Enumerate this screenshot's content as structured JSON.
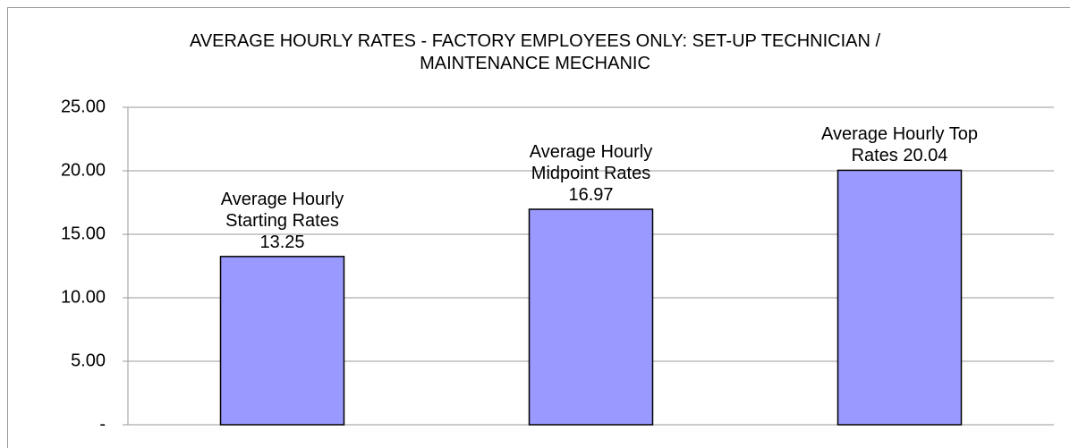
{
  "chart_data": {
    "type": "bar",
    "title": "AVERAGE HOURLY RATES - FACTORY EMPLOYEES ONLY: SET-UP TECHNICIAN / MAINTENANCE MECHANIC",
    "categories": [
      "Average Hourly Starting Rates",
      "Average Hourly Midpoint Rates",
      "Average Hourly Top Rates"
    ],
    "values": [
      13.25,
      16.97,
      20.04
    ],
    "color": "#9999ff",
    "ylim": [
      0,
      25
    ],
    "yticks": [
      {
        "value": 0,
        "label": "-"
      },
      {
        "value": 5,
        "label": "5.00"
      },
      {
        "value": 10,
        "label": "10.00"
      },
      {
        "value": 15,
        "label": "15.00"
      },
      {
        "value": 20,
        "label": "20.00"
      },
      {
        "value": 25,
        "label": "25.00"
      }
    ],
    "grid": true
  }
}
